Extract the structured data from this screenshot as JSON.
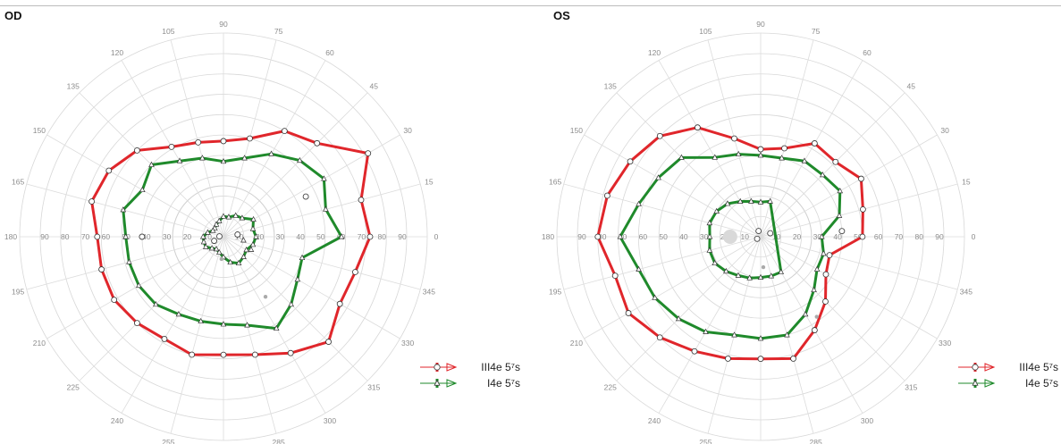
{
  "chart_data": [
    {
      "type": "polar-line",
      "title": "OD",
      "angle_ticks": [
        "0",
        "15",
        "30",
        "45",
        "60",
        "75",
        "90",
        "105",
        "120",
        "135",
        "150",
        "165",
        "180",
        "195",
        "210",
        "225",
        "240",
        "255",
        "270",
        "285",
        "300",
        "315",
        "330",
        "345"
      ],
      "radius_ticks": [
        "90",
        "80",
        "70",
        "60",
        "50",
        "40",
        "30",
        "20",
        "10",
        "10",
        "20",
        "30",
        "40",
        "50",
        "60",
        "70",
        "80",
        "90"
      ],
      "rlim": [
        0,
        90
      ],
      "series": [
        {
          "name": "III4e  5⁷s",
          "color": "#e0262b",
          "points": [
            [
              0,
              72
            ],
            [
              15,
              70
            ],
            [
              30,
              82
            ],
            [
              45,
              65
            ],
            [
              60,
              60
            ],
            [
              75,
              50
            ],
            [
              90,
              47
            ],
            [
              105,
              48
            ],
            [
              120,
              51
            ],
            [
              135,
              60
            ],
            [
              150,
              65
            ],
            [
              165,
              67
            ],
            [
              180,
              62
            ],
            [
              195,
              62
            ],
            [
              210,
              62
            ],
            [
              225,
              60
            ],
            [
              240,
              58
            ],
            [
              255,
              60
            ],
            [
              270,
              58
            ],
            [
              285,
              60
            ],
            [
              300,
              66
            ],
            [
              315,
              73
            ],
            [
              330,
              66
            ],
            [
              345,
              67
            ]
          ]
        },
        {
          "name": "I4e  5⁷s",
          "color": "#1f8a2b",
          "points": [
            [
              0,
              58
            ],
            [
              15,
              52
            ],
            [
              30,
              57
            ],
            [
              45,
              53
            ],
            [
              60,
              47
            ],
            [
              75,
              40
            ],
            [
              90,
              37
            ],
            [
              105,
              40
            ],
            [
              120,
              43
            ],
            [
              135,
              50
            ],
            [
              150,
              46
            ],
            [
              165,
              51
            ],
            [
              180,
              48
            ],
            [
              195,
              48
            ],
            [
              210,
              48
            ],
            [
              225,
              47
            ],
            [
              240,
              44
            ],
            [
              255,
              43
            ],
            [
              270,
              43
            ],
            [
              285,
              45
            ],
            [
              300,
              52
            ],
            [
              315,
              47
            ],
            [
              330,
              42
            ],
            [
              345,
              40
            ]
          ]
        },
        {
          "name": "",
          "color": "#1f8a2b",
          "points": [
            [
              30,
              17
            ],
            [
              45,
              13
            ],
            [
              60,
              12
            ],
            [
              75,
              10
            ],
            [
              90,
              10
            ],
            [
              105,
              8
            ],
            [
              120,
              7
            ],
            [
              135,
              6
            ],
            [
              150,
              6
            ],
            [
              165,
              8
            ],
            [
              180,
              10
            ],
            [
              195,
              10
            ],
            [
              210,
              10
            ],
            [
              225,
              8
            ],
            [
              240,
              7
            ],
            [
              255,
              8
            ],
            [
              270,
              10
            ],
            [
              285,
              13
            ],
            [
              300,
              15
            ],
            [
              315,
              14
            ],
            [
              330,
              13
            ],
            [
              345,
              15
            ],
            [
              0,
              16
            ],
            [
              15,
              15
            ]
          ]
        }
      ],
      "isolated_points": [
        {
          "symbol": "circle",
          "angle": 9,
          "radius": 7
        },
        {
          "symbol": "circle",
          "angle": 175,
          "radius": 2
        },
        {
          "symbol": "circle",
          "angle": 180,
          "radius": 40
        },
        {
          "symbol": "circle",
          "angle": 26,
          "radius": 45
        },
        {
          "symbol": "circle",
          "angle": 204,
          "radius": 5
        },
        {
          "symbol": "dot",
          "angle": 265,
          "radius": 11
        },
        {
          "symbol": "dot",
          "angle": 305,
          "radius": 36
        },
        {
          "symbol": "triangle",
          "angle": 350,
          "radius": 10
        },
        {
          "symbol": "triangle",
          "angle": 335,
          "radius": 15
        }
      ]
    },
    {
      "type": "polar-line",
      "title": "OS",
      "angle_ticks": [
        "0",
        "15",
        "30",
        "45",
        "60",
        "75",
        "90",
        "105",
        "120",
        "135",
        "150",
        "165",
        "180",
        "195",
        "210",
        "225",
        "240",
        "255",
        "270",
        "285",
        "300",
        "315",
        "330",
        "345"
      ],
      "radius_ticks": [
        "90",
        "80",
        "70",
        "60",
        "50",
        "40",
        "30",
        "20",
        "10",
        "10",
        "20",
        "30",
        "40",
        "50",
        "60",
        "70",
        "80",
        "90"
      ],
      "rlim": [
        0,
        90
      ],
      "series": [
        {
          "name": "III4e  5⁷s",
          "color": "#e0262b",
          "points": [
            [
              0,
              50
            ],
            [
              15,
              52
            ],
            [
              30,
              57
            ],
            [
              45,
              52
            ],
            [
              60,
              53
            ],
            [
              75,
              45
            ],
            [
              90,
              43
            ],
            [
              105,
              50
            ],
            [
              120,
              62
            ],
            [
              135,
              70
            ],
            [
              150,
              74
            ],
            [
              165,
              78
            ],
            [
              180,
              80
            ],
            [
              195,
              74
            ],
            [
              210,
              75
            ],
            [
              225,
              70
            ],
            [
              240,
              65
            ],
            [
              255,
              62
            ],
            [
              270,
              60
            ],
            [
              285,
              62
            ],
            [
              300,
              53
            ],
            [
              315,
              45
            ],
            [
              330,
              37
            ],
            [
              345,
              35
            ]
          ]
        },
        {
          "name": "I4e  5⁷s",
          "color": "#1f8a2b",
          "points": [
            [
              0,
              30
            ],
            [
              15,
              40
            ],
            [
              30,
              45
            ],
            [
              45,
              43
            ],
            [
              60,
              43
            ],
            [
              75,
              40
            ],
            [
              90,
              40
            ],
            [
              105,
              42
            ],
            [
              120,
              45
            ],
            [
              135,
              55
            ],
            [
              150,
              58
            ],
            [
              165,
              62
            ],
            [
              180,
              69
            ],
            [
              195,
              62
            ],
            [
              210,
              60
            ],
            [
              225,
              57
            ],
            [
              240,
              54
            ],
            [
              255,
              50
            ],
            [
              270,
              50
            ],
            [
              285,
              50
            ],
            [
              300,
              44
            ],
            [
              315,
              37
            ],
            [
              330,
              32
            ],
            [
              345,
              32
            ]
          ]
        },
        {
          "name": "",
          "color": "#1f8a2b",
          "points": [
            [
              75,
              18
            ],
            [
              90,
              17
            ],
            [
              105,
              18
            ],
            [
              120,
              20
            ],
            [
              135,
              23
            ],
            [
              150,
              25
            ],
            [
              165,
              26
            ],
            [
              180,
              25
            ],
            [
              195,
              26
            ],
            [
              210,
              26
            ],
            [
              225,
              24
            ],
            [
              240,
              22
            ],
            [
              255,
              21
            ],
            [
              270,
              20
            ],
            [
              285,
              20
            ],
            [
              300,
              20
            ]
          ]
        }
      ],
      "isolated_points": [
        {
          "symbol": "circle",
          "angle": 110,
          "radius": 3
        },
        {
          "symbol": "circle",
          "angle": 20,
          "radius": 5
        },
        {
          "symbol": "circle",
          "angle": 210,
          "radius": 2
        },
        {
          "symbol": "blindspot",
          "angle": 180,
          "radius": 15
        },
        {
          "symbol": "dot",
          "angle": 275,
          "radius": 15
        },
        {
          "symbol": "dot",
          "angle": 305,
          "radius": 48
        },
        {
          "symbol": "circle",
          "angle": 4,
          "radius": 40
        }
      ]
    }
  ],
  "legend": {
    "items": [
      {
        "label": "III4e  5⁷s",
        "color": "#e0262b",
        "marker": "circle"
      },
      {
        "label": "I4e  5⁷s",
        "color": "#1f8a2b",
        "marker": "triangle"
      }
    ]
  }
}
